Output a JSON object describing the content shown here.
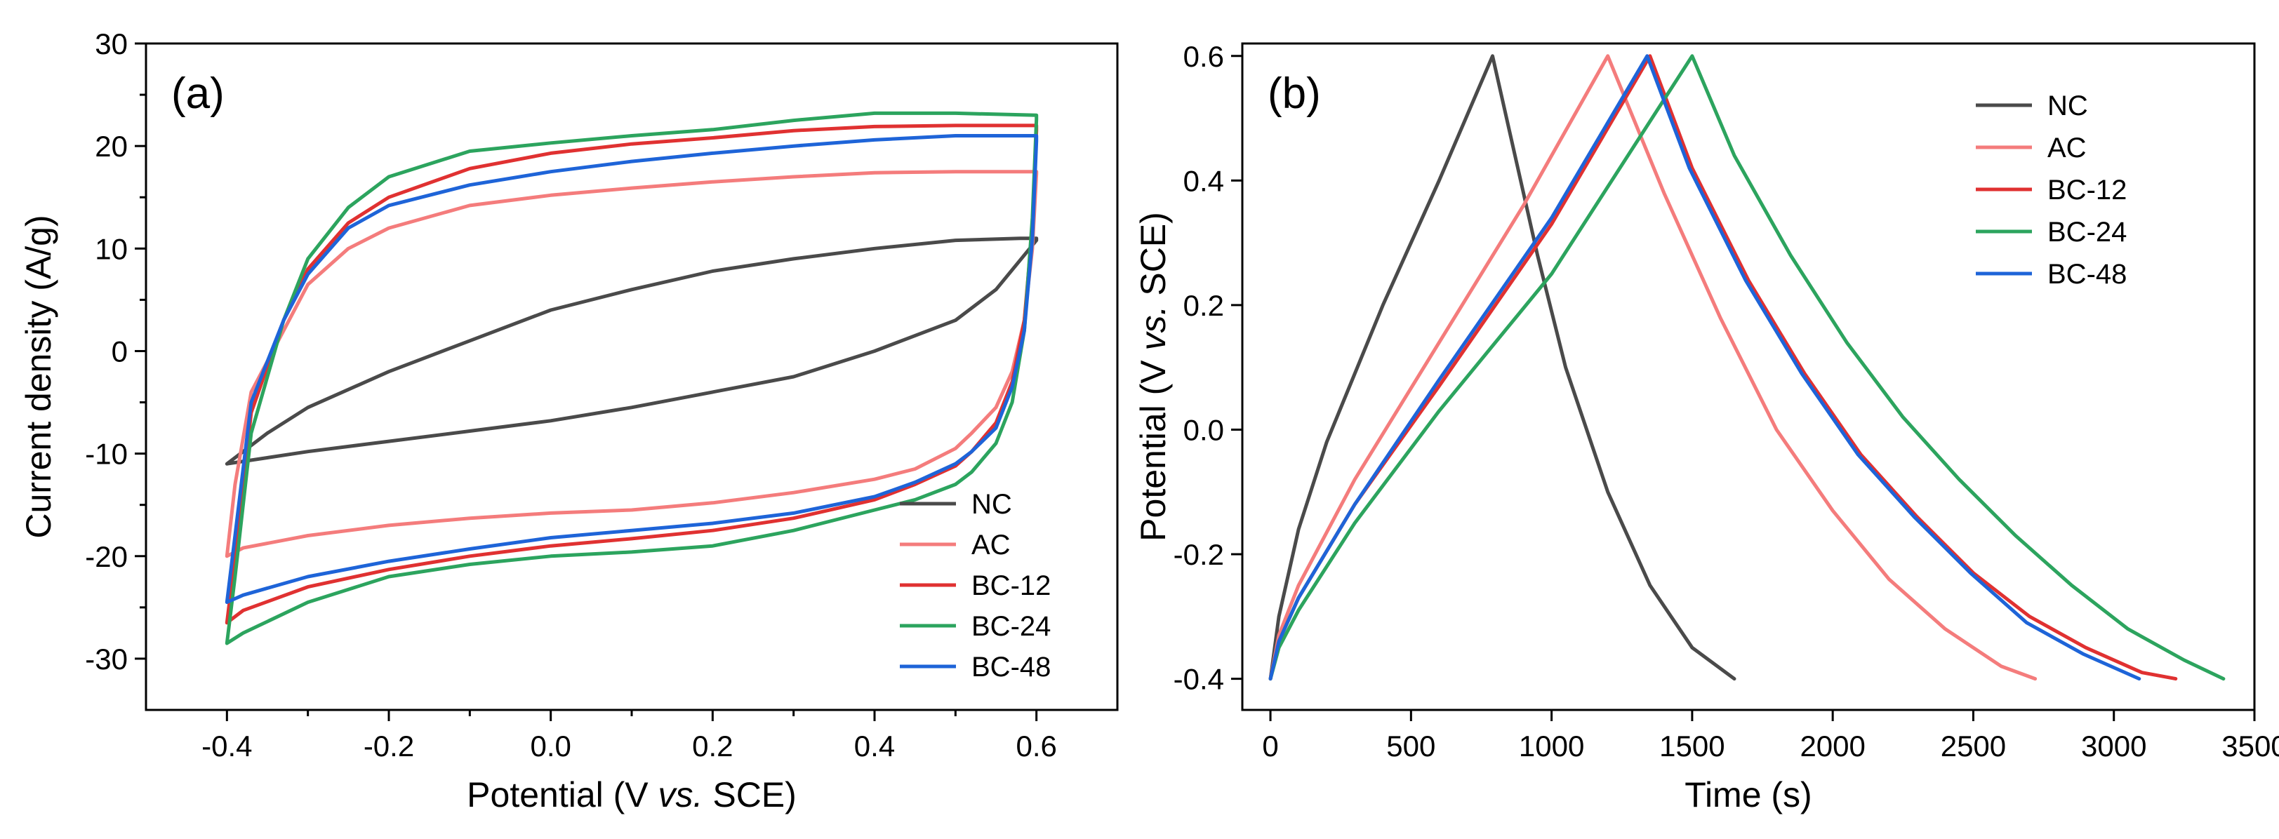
{
  "chart_data": [
    {
      "type": "line",
      "panel_label": "(a)",
      "title": "",
      "xlabel": "Potential (V ",
      "xlabel_italic": "vs.",
      "xlabel_suffix": " SCE)",
      "ylabel": "Current density (A/g)",
      "xlim": [
        -0.5,
        0.7
      ],
      "ylim": [
        -35,
        30
      ],
      "xticks": [
        -0.4,
        -0.2,
        0.0,
        0.2,
        0.4,
        0.6
      ],
      "xtick_labels": [
        "-0.4",
        "-0.2",
        "0.0",
        "0.2",
        "0.4",
        "0.6"
      ],
      "yticks": [
        -30,
        -20,
        -10,
        0,
        10,
        20,
        30
      ],
      "ytick_labels": [
        "-30",
        "-20",
        "-10",
        "0",
        "10",
        "20",
        "30"
      ],
      "legend_position": "bottom-right",
      "series": [
        {
          "name": "NC",
          "color": "#4a4a4a",
          "x": [
            -0.4,
            -0.35,
            -0.3,
            -0.2,
            -0.1,
            0.0,
            0.1,
            0.2,
            0.3,
            0.4,
            0.5,
            0.58,
            0.6,
            0.6,
            0.55,
            0.5,
            0.4,
            0.3,
            0.2,
            0.1,
            0.0,
            -0.1,
            -0.2,
            -0.3,
            -0.4
          ],
          "y": [
            -11,
            -8,
            -5.5,
            -2,
            1,
            4,
            6,
            7.8,
            9,
            10,
            10.8,
            11,
            11,
            10.8,
            6,
            3,
            0,
            -2.5,
            -4,
            -5.5,
            -6.8,
            -7.8,
            -8.8,
            -9.8,
            -11
          ]
        },
        {
          "name": "AC",
          "color": "#f47c7c",
          "x": [
            -0.4,
            -0.39,
            -0.37,
            -0.33,
            -0.3,
            -0.25,
            -0.2,
            -0.1,
            0.0,
            0.1,
            0.2,
            0.3,
            0.4,
            0.5,
            0.6,
            0.6,
            0.595,
            0.585,
            0.57,
            0.55,
            0.52,
            0.5,
            0.45,
            0.4,
            0.3,
            0.2,
            0.1,
            0.0,
            -0.1,
            -0.2,
            -0.3,
            -0.38,
            -0.4
          ],
          "y": [
            -20,
            -13,
            -4,
            2,
            6.5,
            10,
            12,
            14.2,
            15.2,
            15.9,
            16.5,
            17,
            17.4,
            17.5,
            17.5,
            17.3,
            10,
            3,
            -2,
            -5.5,
            -8,
            -9.5,
            -11.5,
            -12.5,
            -13.8,
            -14.8,
            -15.5,
            -15.8,
            -16.3,
            -17,
            -18,
            -19.2,
            -20
          ]
        },
        {
          "name": "BC-12",
          "color": "#e03131",
          "x": [
            -0.4,
            -0.39,
            -0.37,
            -0.33,
            -0.3,
            -0.25,
            -0.2,
            -0.1,
            0.0,
            0.1,
            0.2,
            0.3,
            0.4,
            0.5,
            0.6,
            0.6,
            0.595,
            0.585,
            0.57,
            0.55,
            0.52,
            0.5,
            0.45,
            0.4,
            0.3,
            0.2,
            0.1,
            0.0,
            -0.1,
            -0.2,
            -0.3,
            -0.38,
            -0.4
          ],
          "y": [
            -26.5,
            -20,
            -6,
            3,
            8,
            12.5,
            15,
            17.8,
            19.3,
            20.2,
            20.8,
            21.5,
            21.9,
            22,
            22,
            21.5,
            12,
            3,
            -3,
            -7,
            -9.8,
            -11.2,
            -13,
            -14.5,
            -16.3,
            -17.5,
            -18.3,
            -19,
            -20,
            -21.3,
            -23,
            -25.3,
            -26.5
          ]
        },
        {
          "name": "BC-24",
          "color": "#2ca45e",
          "x": [
            -0.4,
            -0.39,
            -0.37,
            -0.33,
            -0.3,
            -0.25,
            -0.2,
            -0.1,
            0.0,
            0.1,
            0.2,
            0.3,
            0.4,
            0.5,
            0.6,
            0.6,
            0.595,
            0.585,
            0.57,
            0.55,
            0.52,
            0.5,
            0.45,
            0.4,
            0.3,
            0.2,
            0.1,
            0.0,
            -0.1,
            -0.2,
            -0.3,
            -0.38,
            -0.4
          ],
          "y": [
            -28.5,
            -22,
            -8,
            3,
            9,
            14,
            17,
            19.5,
            20.3,
            21,
            21.6,
            22.5,
            23.2,
            23.2,
            23,
            22.6,
            13,
            2,
            -5,
            -9,
            -11.8,
            -13,
            -14.5,
            -15.5,
            -17.5,
            -19,
            -19.6,
            -20,
            -20.8,
            -22,
            -24.5,
            -27.5,
            -28.5
          ]
        },
        {
          "name": "BC-48",
          "color": "#1e64d8",
          "x": [
            -0.4,
            -0.39,
            -0.37,
            -0.33,
            -0.3,
            -0.25,
            -0.2,
            -0.1,
            0.0,
            0.1,
            0.2,
            0.3,
            0.4,
            0.5,
            0.6,
            0.6,
            0.595,
            0.585,
            0.57,
            0.55,
            0.52,
            0.5,
            0.45,
            0.4,
            0.3,
            0.2,
            0.1,
            0.0,
            -0.1,
            -0.2,
            -0.3,
            -0.38,
            -0.4
          ],
          "y": [
            -24.5,
            -18,
            -5,
            3,
            7.5,
            12,
            14.2,
            16.2,
            17.5,
            18.5,
            19.3,
            20,
            20.6,
            21,
            21,
            20.5,
            11,
            2,
            -3.5,
            -7.5,
            -9.8,
            -11,
            -12.8,
            -14.2,
            -15.8,
            -16.8,
            -17.5,
            -18.2,
            -19.3,
            -20.5,
            -22,
            -23.8,
            -24.5
          ]
        }
      ]
    },
    {
      "type": "line",
      "panel_label": "(b)",
      "title": "",
      "xlabel": "Time (s)",
      "ylabel": "Potential (V ",
      "ylabel_italic": "vs.",
      "ylabel_suffix": " SCE)",
      "xlim": [
        -100,
        3500
      ],
      "ylim": [
        -0.45,
        0.62
      ],
      "xticks": [
        0,
        500,
        1000,
        1500,
        2000,
        2500,
        3000,
        3500
      ],
      "xtick_labels": [
        "0",
        "500",
        "1000",
        "1500",
        "2000",
        "2500",
        "3000",
        "3500"
      ],
      "yticks": [
        -0.4,
        -0.2,
        0.0,
        0.2,
        0.4,
        0.6
      ],
      "ytick_labels": [
        "-0.4",
        "-0.2",
        "0.0",
        "0.2",
        "0.4",
        "0.6"
      ],
      "legend_position": "top-right",
      "series": [
        {
          "name": "NC",
          "color": "#4a4a4a",
          "x": [
            0,
            30,
            100,
            200,
            400,
            600,
            790,
            850,
            950,
            1050,
            1200,
            1350,
            1500,
            1650
          ],
          "y": [
            -0.4,
            -0.3,
            -0.16,
            -0.02,
            0.2,
            0.4,
            0.6,
            0.48,
            0.28,
            0.1,
            -0.1,
            -0.25,
            -0.35,
            -0.4
          ]
        },
        {
          "name": "AC",
          "color": "#f47c7c",
          "x": [
            0,
            30,
            100,
            300,
            600,
            900,
            1200,
            1400,
            1600,
            1800,
            2000,
            2200,
            2400,
            2600,
            2720
          ],
          "y": [
            -0.4,
            -0.33,
            -0.25,
            -0.08,
            0.14,
            0.36,
            0.6,
            0.38,
            0.18,
            0.0,
            -0.13,
            -0.24,
            -0.32,
            -0.38,
            -0.4
          ]
        },
        {
          "name": "BC-12",
          "color": "#e03131",
          "x": [
            0,
            30,
            100,
            300,
            600,
            1000,
            1350,
            1500,
            1700,
            1900,
            2100,
            2300,
            2500,
            2700,
            2900,
            3100,
            3220
          ],
          "y": [
            -0.4,
            -0.34,
            -0.27,
            -0.12,
            0.07,
            0.33,
            0.6,
            0.42,
            0.24,
            0.09,
            -0.04,
            -0.14,
            -0.23,
            -0.3,
            -0.35,
            -0.39,
            -0.4
          ]
        },
        {
          "name": "BC-24",
          "color": "#2ca45e",
          "x": [
            0,
            30,
            100,
            300,
            600,
            1000,
            1500,
            1650,
            1850,
            2050,
            2250,
            2450,
            2650,
            2850,
            3050,
            3250,
            3390
          ],
          "y": [
            -0.4,
            -0.35,
            -0.29,
            -0.15,
            0.03,
            0.25,
            0.6,
            0.44,
            0.28,
            0.14,
            0.02,
            -0.08,
            -0.17,
            -0.25,
            -0.32,
            -0.37,
            -0.4
          ]
        },
        {
          "name": "BC-48",
          "color": "#1e64d8",
          "x": [
            0,
            30,
            100,
            300,
            600,
            1000,
            1340,
            1490,
            1690,
            1890,
            2090,
            2290,
            2490,
            2690,
            2890,
            3090
          ],
          "y": [
            -0.4,
            -0.34,
            -0.27,
            -0.12,
            0.08,
            0.34,
            0.6,
            0.42,
            0.24,
            0.09,
            -0.04,
            -0.14,
            -0.23,
            -0.31,
            -0.36,
            -0.4
          ]
        }
      ]
    }
  ]
}
